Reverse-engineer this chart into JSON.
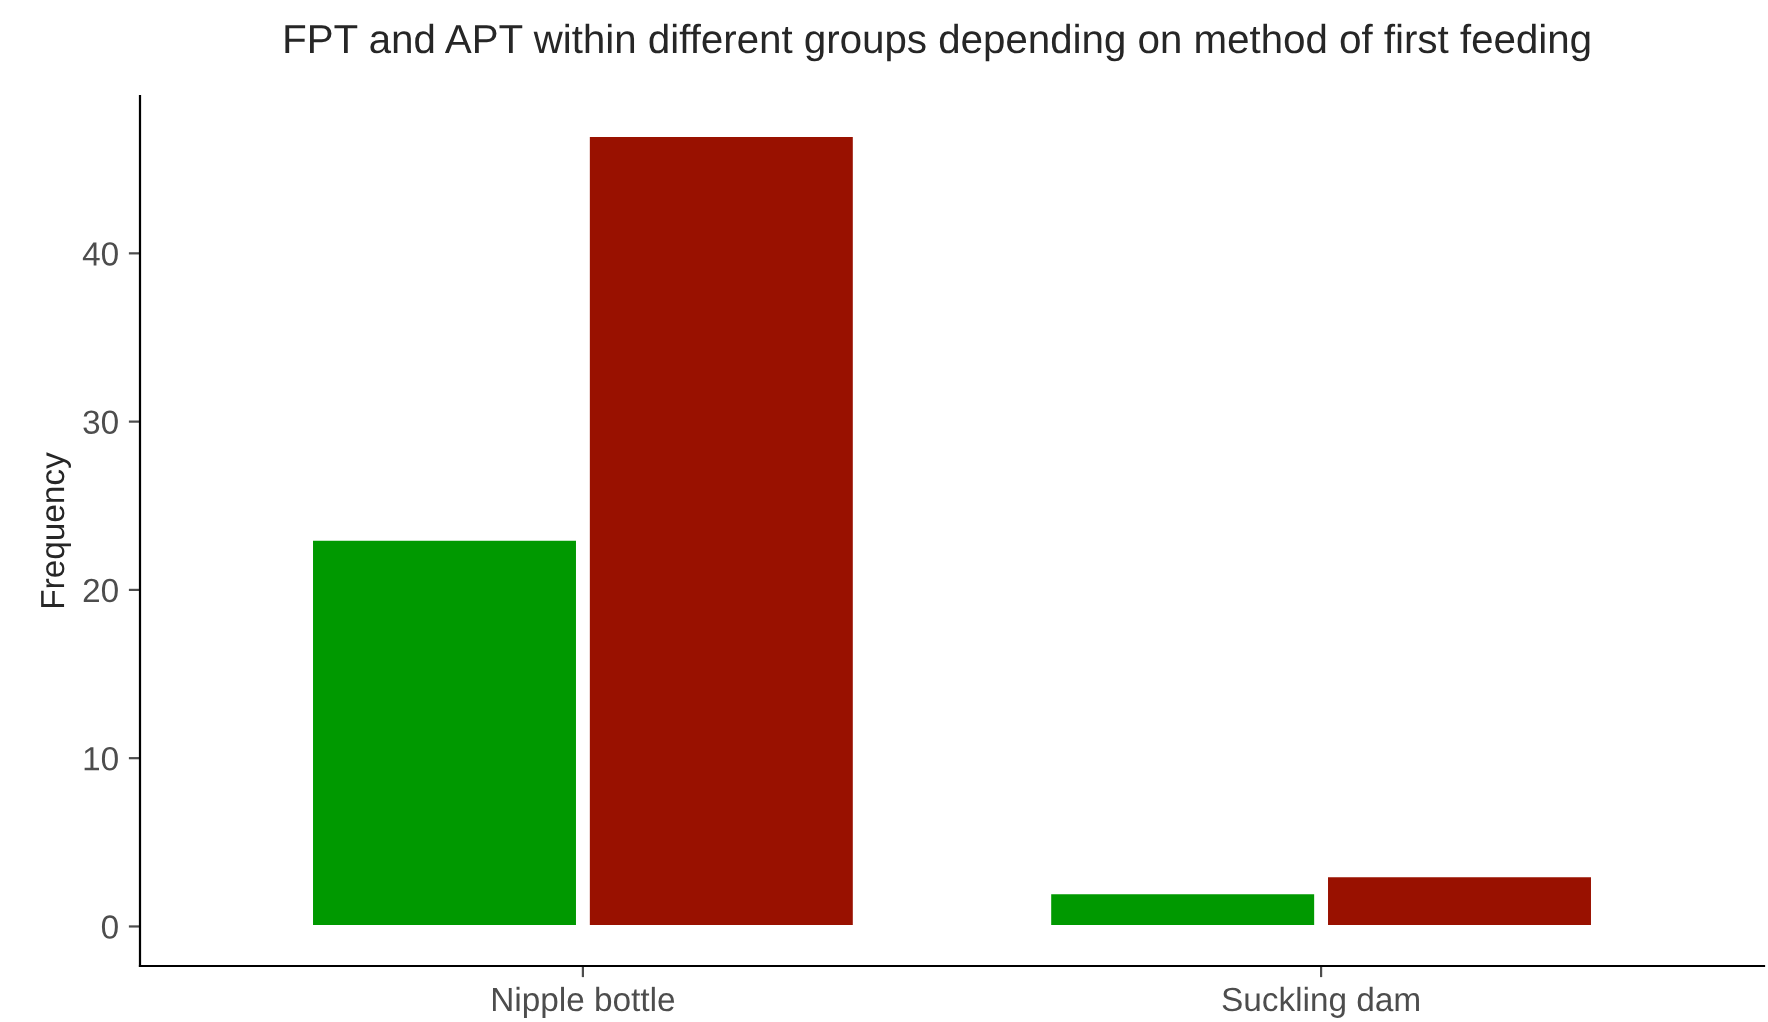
{
  "chart_data": {
    "type": "bar",
    "title": "FPT and APT within different groups depending on method of first feeding",
    "ylabel": "Frequency",
    "categories": [
      "Nipple bottle",
      "Suckling dam"
    ],
    "series": [
      {
        "color": "#009900",
        "values": [
          23,
          2
        ]
      },
      {
        "color": "#991100",
        "values": [
          47,
          3
        ]
      }
    ],
    "ylim": [
      -2.35,
      49.35
    ],
    "yticks": [
      0,
      10,
      20,
      30,
      40
    ],
    "grid": false
  }
}
